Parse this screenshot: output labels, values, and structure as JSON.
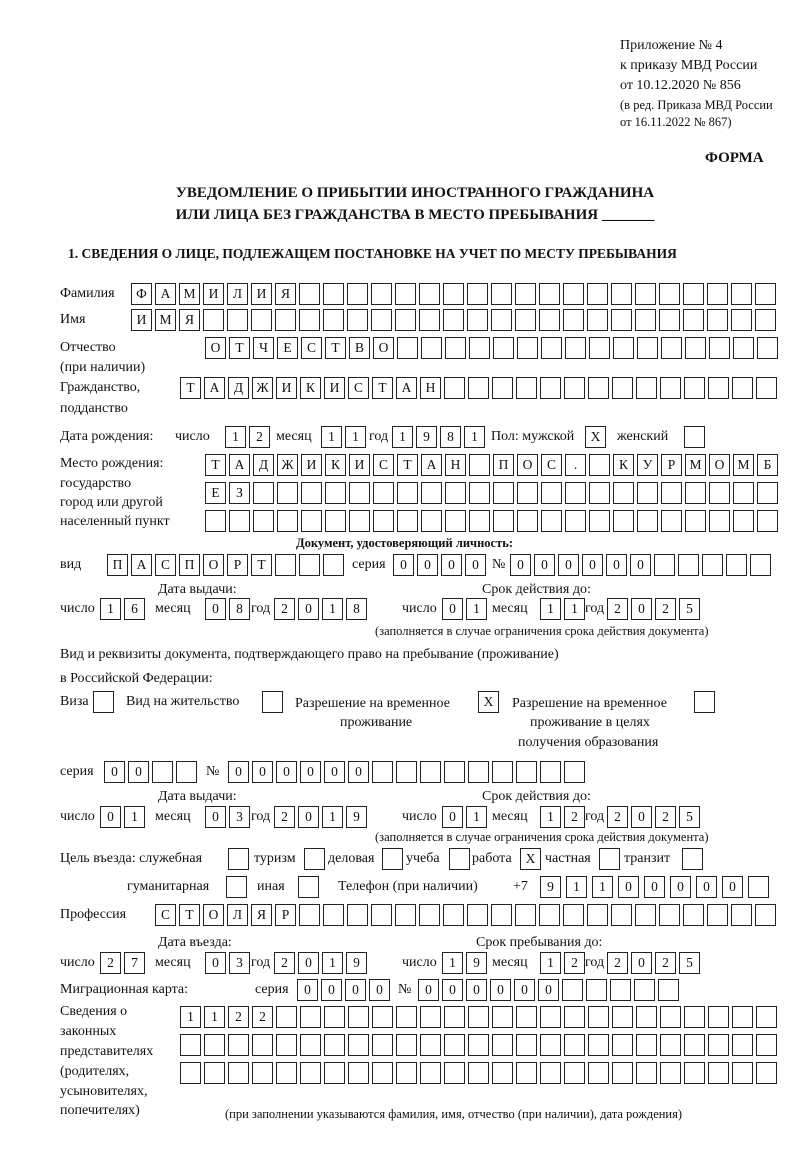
{
  "header": {
    "appendix": "Приложение № 4",
    "order": "к приказу МВД России",
    "order_date": "от 10.12.2020 № 856",
    "edition": "(в ред. Приказа МВД России",
    "edition_date": "от 16.11.2022 № 867)",
    "form_label": "ФОРМА",
    "title_line1": "УВЕДОМЛЕНИЕ О ПРИБЫТИИ ИНОСТРАННОГО ГРАЖДАНИНА",
    "title_line2": "ИЛИ ЛИЦА БЕЗ ГРАЖДАНСТВА В МЕСТО ПРЕБЫВАНИЯ _______",
    "section1": "1. СВЕДЕНИЯ О ЛИЦЕ, ПОДЛЕЖАЩЕМ ПОСТАНОВКЕ НА УЧЕТ ПО МЕСТУ ПРЕБЫВАНИЯ"
  },
  "labels": {
    "surname": "Фамилия",
    "name": "Имя",
    "patronymic": "Отчество",
    "patronymic_note": "(при наличии)",
    "citizenship": "Гражданство,",
    "citizenship2": "подданство",
    "birth_date": "Дата рождения:",
    "day": "число",
    "month": "месяц",
    "year": "год",
    "sex_male": "Пол: мужской",
    "sex_female": "женский",
    "birth_place": "Место рождения:",
    "birth_place2": "государство",
    "birth_place3": "город или другой",
    "birth_place4": "населенный пункт",
    "id_doc": "Документ, удостоверяющий личность:",
    "kind": "вид",
    "series": "серия",
    "number": "№",
    "issue_date": "Дата выдачи:",
    "valid_until": "Срок действия до:",
    "validity_note": "(заполняется в случае ограничения срока действия документа)",
    "stay_doc": "Вид и реквизиты документа, подтверждающего право на пребывание (проживание)",
    "stay_doc2": "в Российской Федерации:",
    "visa": "Виза",
    "residence": "Вид на жительство",
    "temp_permit": "Разрешение на временное",
    "temp_permit2": "проживание",
    "edu_permit": "Разрешение на временное",
    "edu_permit2": "проживание в целях",
    "edu_permit3": "получения образования",
    "purpose": "Цель въезда: служебная",
    "tourism": "туризм",
    "business": "деловая",
    "study": "учеба",
    "work": "работа",
    "private": "частная",
    "transit": "транзит",
    "humanitarian": "гуманитарная",
    "other": "иная",
    "phone": "Телефон (при наличии)",
    "phone_prefix": "+7",
    "profession": "Профессия",
    "entry_date": "Дата въезда:",
    "stay_until": "Срок пребывания до:",
    "migration_card": "Миграционная карта:",
    "reps1": "Сведения о",
    "reps2": "законных",
    "reps3": "представителях",
    "reps4": "(родителях,",
    "reps5": "усыновителях,",
    "reps6": "попечителях)",
    "reps_note": "(при заполнении указываются фамилия, имя, отчество (при наличии), дата рождения)"
  },
  "fields": {
    "surname": "ФАМИЛИЯ",
    "name": "ИМЯ",
    "patronymic": "ОТЧЕСТВО",
    "citizenship": "ТАДЖИКИСТАН",
    "birth_day": "12",
    "birth_month": "11",
    "birth_year": "1981",
    "sex_male": "X",
    "sex_female": "",
    "birth_place1": "ТАДЖИКИСТАН ПОС. КУРМОМБ",
    "birth_place2": "ЕЗ",
    "birth_place3": "",
    "id_kind": "ПАСПОРТ",
    "id_series": "0000",
    "id_number": "000000",
    "id_issue_day": "16",
    "id_issue_month": "08",
    "id_issue_year": "2018",
    "id_valid_day": "01",
    "id_valid_month": "11",
    "id_valid_year": "2025",
    "visa": "",
    "residence": "",
    "temp_permit": "X",
    "edu_permit": "",
    "permit_series": "00",
    "permit_number": "000000",
    "permit_issue_day": "01",
    "permit_issue_month": "03",
    "permit_issue_year": "2019",
    "permit_valid_day": "01",
    "permit_valid_month": "12",
    "permit_valid_year": "2025",
    "purpose_official": "",
    "purpose_tourism": "",
    "purpose_business": "",
    "purpose_study": "",
    "purpose_work": "X",
    "purpose_private": "",
    "purpose_transit": "",
    "purpose_humanitarian": "",
    "purpose_other": "",
    "phone": "91100000",
    "profession": "СТОЛЯР",
    "entry_day": "27",
    "entry_month": "03",
    "entry_year": "2019",
    "stay_day": "19",
    "stay_month": "12",
    "stay_year": "2025",
    "mig_series": "0000",
    "mig_number": "000000",
    "reps1": "1122",
    "reps2": "",
    "reps3": ""
  }
}
